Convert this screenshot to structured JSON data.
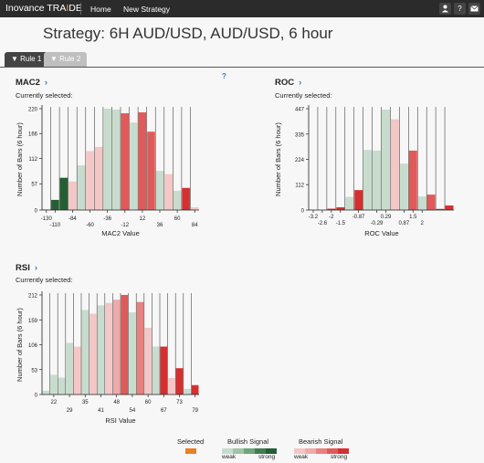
{
  "navbar": {
    "brand_prefix": "Inovance TRA",
    "brand_highlight": "I",
    "brand_suffix": "DE",
    "links": [
      "Home",
      "New Strategy"
    ],
    "icons": [
      "user-icon",
      "help-icon",
      "mail-icon"
    ]
  },
  "page_title": "Strategy: 6H AUD/USD, AUD/USD, 6 hour",
  "tabs": [
    {
      "label": "Rule 1",
      "active": true,
      "icon": "filter-icon"
    },
    {
      "label": "Rule 2",
      "active": false,
      "icon": "filter-icon"
    }
  ],
  "help_mark": "?",
  "current_selected_label": "Currently selected:",
  "colors": {
    "selected": "#e8821e",
    "bullish": [
      "#c8dccd",
      "#9fc4a8",
      "#6fa57c",
      "#3f7c4e",
      "#245f34"
    ],
    "bearish": [
      "#f4c6c6",
      "#eeaaaa",
      "#e88080",
      "#e05a5a",
      "#d43030"
    ]
  },
  "legend": {
    "selected": "Selected",
    "bullish": "Bullish Signal",
    "bearish": "Bearish Signal",
    "weak": "weak",
    "strong": "strong"
  },
  "chart_data": [
    {
      "title": "MAC2",
      "type": "bar",
      "xlabel": "MAC2 Value",
      "ylabel": "Number of Bars (6 hour)",
      "ylim": [
        0,
        220
      ],
      "yticks": [
        0,
        57,
        112,
        166,
        220
      ],
      "xticks": [
        {
          "label": "-130",
          "bar": 0,
          "row": 0
        },
        {
          "label": "-110",
          "bar": 1,
          "row": 1
        },
        {
          "label": "-84",
          "bar": 3,
          "row": 0
        },
        {
          "label": "-60",
          "bar": 5,
          "row": 1
        },
        {
          "label": "-36",
          "bar": 7,
          "row": 0
        },
        {
          "label": "-12",
          "bar": 9,
          "row": 1
        },
        {
          "label": "12",
          "bar": 11,
          "row": 0
        },
        {
          "label": "36",
          "bar": 13,
          "row": 1
        },
        {
          "label": "60",
          "bar": 15,
          "row": 0
        },
        {
          "label": "84",
          "bar": 17,
          "row": 1
        }
      ],
      "values": [
        2,
        22,
        70,
        62,
        97,
        128,
        137,
        220,
        218,
        210,
        190,
        212,
        170,
        85,
        78,
        42,
        48,
        6
      ],
      "colors": [
        "#f4c6c6",
        "#245f34",
        "#245f34",
        "#f4c6c6",
        "#c8dccd",
        "#f4c6c6",
        "#f4c6c6",
        "#c8dccd",
        "#c8dccd",
        "#e05a5a",
        "#c8dccd",
        "#e05a5a",
        "#e05a5a",
        "#c8dccd",
        "#f4c6c6",
        "#c8dccd",
        "#d43030",
        "#f4c6c6"
      ]
    },
    {
      "title": "ROC",
      "type": "bar",
      "xlabel": "ROC Value",
      "ylabel": "Number of Bars (6 hour)",
      "ylim": [
        0,
        447
      ],
      "yticks": [
        0,
        112,
        224,
        335,
        447
      ],
      "xticks": [
        {
          "label": "-3.2",
          "bar": 0,
          "row": 0
        },
        {
          "label": "-2.6",
          "bar": 1,
          "row": 1
        },
        {
          "label": "-2",
          "bar": 2,
          "row": 0
        },
        {
          "label": "-1.5",
          "bar": 3,
          "row": 1
        },
        {
          "label": "-0.87",
          "bar": 5,
          "row": 0
        },
        {
          "label": "-0.29",
          "bar": 7,
          "row": 1
        },
        {
          "label": "0.29",
          "bar": 8,
          "row": 0
        },
        {
          "label": "0.87",
          "bar": 10,
          "row": 1
        },
        {
          "label": "1.5",
          "bar": 11,
          "row": 0
        },
        {
          "label": "2",
          "bar": 12,
          "row": 1
        }
      ],
      "values": [
        2,
        2,
        6,
        12,
        58,
        88,
        265,
        262,
        443,
        400,
        205,
        262,
        60,
        68,
        5,
        20
      ],
      "colors": [
        "#f4c6c6",
        "#f4c6c6",
        "#d43030",
        "#d43030",
        "#c8dccd",
        "#d43030",
        "#c8dccd",
        "#c8dccd",
        "#c8dccd",
        "#f4c6c6",
        "#c8dccd",
        "#e05a5a",
        "#c8dccd",
        "#e05a5a",
        "#d43030",
        "#d43030"
      ]
    },
    {
      "title": "RSI",
      "type": "bar",
      "xlabel": "RSI Value",
      "ylabel": "Number of Bars (6 hour)",
      "ylim": [
        0,
        212
      ],
      "yticks": [
        0,
        53,
        106,
        159,
        212
      ],
      "xticks": [
        {
          "label": "22",
          "bar": 1,
          "row": 0
        },
        {
          "label": "29",
          "bar": 3,
          "row": 1
        },
        {
          "label": "35",
          "bar": 5,
          "row": 0
        },
        {
          "label": "41",
          "bar": 7,
          "row": 1
        },
        {
          "label": "48",
          "bar": 9,
          "row": 0
        },
        {
          "label": "54",
          "bar": 11,
          "row": 1
        },
        {
          "label": "60",
          "bar": 13,
          "row": 0
        },
        {
          "label": "67",
          "bar": 15,
          "row": 1
        },
        {
          "label": "73",
          "bar": 17,
          "row": 0
        },
        {
          "label": "79",
          "bar": 19,
          "row": 1
        }
      ],
      "values": [
        8,
        42,
        36,
        110,
        102,
        180,
        172,
        190,
        195,
        202,
        212,
        175,
        197,
        142,
        102,
        102,
        35,
        56,
        12,
        20
      ],
      "colors": [
        "#c8dccd",
        "#c8dccd",
        "#c8dccd",
        "#c8dccd",
        "#f4c6c6",
        "#c8dccd",
        "#f4c6c6",
        "#c8dccd",
        "#f4c6c6",
        "#eeaaaa",
        "#e05a5a",
        "#c8dccd",
        "#e88080",
        "#f4c6c6",
        "#c8dccd",
        "#d43030",
        "#f4c6c6",
        "#d43030",
        "#c8dccd",
        "#d43030"
      ]
    }
  ]
}
